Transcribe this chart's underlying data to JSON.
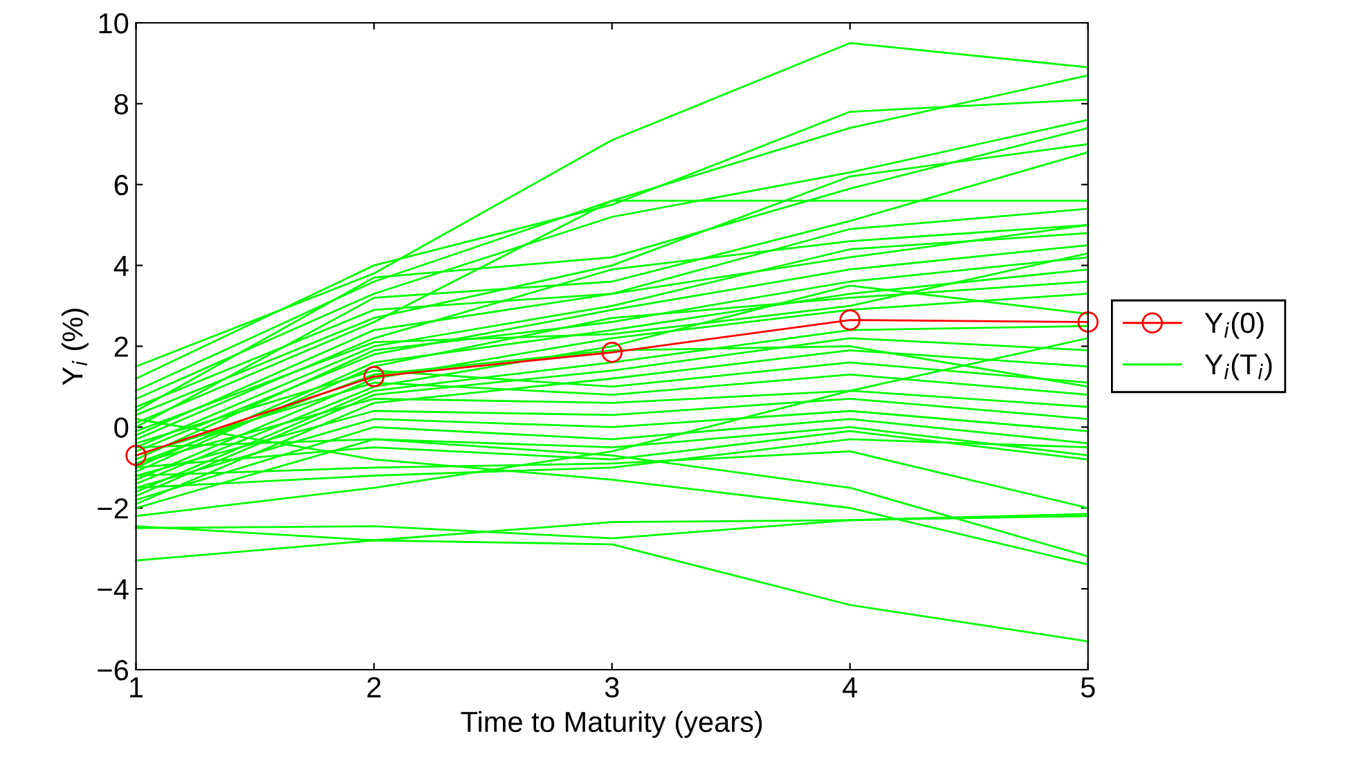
{
  "chart_data": {
    "type": "line",
    "xlabel": "Time to Maturity (years)",
    "ylabel": "Y$_{i}$ (%)",
    "x": [
      1,
      2,
      3,
      4,
      5
    ],
    "xlim": [
      1,
      5
    ],
    "ylim": [
      -6,
      10
    ],
    "xticks": [
      1,
      2,
      3,
      4,
      5
    ],
    "yticks": [
      -6,
      -4,
      -2,
      0,
      2,
      4,
      6,
      8,
      10
    ],
    "legend": "right",
    "grid": false,
    "line_style": "solid",
    "series": [
      {
        "name": "Y$_{i}$(T$_{i}$)",
        "color": "#00ff00",
        "marker": "none",
        "values": [
          1.5,
          3.8,
          7.1,
          9.5,
          8.9
        ]
      },
      {
        "color": "#00ff00",
        "marker": "none",
        "values": [
          1.2,
          4.0,
          5.5,
          7.8,
          8.1
        ]
      },
      {
        "color": "#00ff00",
        "marker": "none",
        "values": [
          0.9,
          3.6,
          5.6,
          7.4,
          8.7
        ]
      },
      {
        "color": "#00ff00",
        "marker": "none",
        "values": [
          0.7,
          3.3,
          5.2,
          6.3,
          7.6
        ]
      },
      {
        "color": "#00ff00",
        "marker": "none",
        "values": [
          0.4,
          3.7,
          4.2,
          5.9,
          7.4
        ]
      },
      {
        "color": "#00ff00",
        "marker": "none",
        "values": [
          0.3,
          2.7,
          4.0,
          6.2,
          7.0
        ]
      },
      {
        "color": "#00ff00",
        "marker": "none",
        "values": [
          0.1,
          2.6,
          5.6,
          5.6,
          5.6
        ]
      },
      {
        "color": "#00ff00",
        "marker": "none",
        "values": [
          0.0,
          3.2,
          3.6,
          5.1,
          6.8
        ]
      },
      {
        "color": "#00ff00",
        "marker": "none",
        "values": [
          -0.2,
          2.4,
          3.3,
          4.9,
          5.4
        ]
      },
      {
        "color": "#00ff00",
        "marker": "none",
        "values": [
          -0.3,
          2.2,
          3.9,
          4.6,
          5.0
        ]
      },
      {
        "color": "#00ff00",
        "marker": "none",
        "values": [
          -0.5,
          2.0,
          3.0,
          4.4,
          4.8
        ]
      },
      {
        "color": "#00ff00",
        "marker": "none",
        "values": [
          -0.6,
          1.8,
          2.9,
          3.9,
          4.5
        ]
      },
      {
        "color": "#00ff00",
        "marker": "none",
        "values": [
          -0.8,
          1.9,
          2.6,
          3.6,
          4.2
        ]
      },
      {
        "color": "#00ff00",
        "marker": "none",
        "values": [
          -1.0,
          1.6,
          2.4,
          3.3,
          3.9
        ]
      },
      {
        "color": "#00ff00",
        "marker": "none",
        "values": [
          -1.1,
          1.5,
          2.7,
          3.2,
          3.6
        ]
      },
      {
        "color": "#00ff00",
        "marker": "none",
        "values": [
          -1.3,
          1.2,
          2.2,
          2.9,
          3.3
        ]
      },
      {
        "color": "#00ff00",
        "marker": "none",
        "values": [
          -1.4,
          1.0,
          2.0,
          3.5,
          2.8
        ]
      },
      {
        "color": "#00ff00",
        "marker": "none",
        "values": [
          -1.6,
          0.9,
          1.6,
          2.4,
          2.5
        ]
      },
      {
        "color": "#00ff00",
        "marker": "none",
        "values": [
          -1.7,
          0.8,
          1.4,
          2.2,
          1.9
        ]
      },
      {
        "color": "#00ff00",
        "marker": "none",
        "values": [
          -1.9,
          0.6,
          1.2,
          1.9,
          1.5
        ]
      },
      {
        "color": "#00ff00",
        "marker": "none",
        "values": [
          -0.4,
          1.4,
          1.0,
          1.6,
          1.1
        ]
      },
      {
        "color": "#00ff00",
        "marker": "none",
        "values": [
          -0.7,
          1.1,
          0.8,
          1.3,
          0.8
        ]
      },
      {
        "color": "#00ff00",
        "marker": "none",
        "values": [
          -0.9,
          0.7,
          0.6,
          0.9,
          0.5
        ]
      },
      {
        "color": "#00ff00",
        "marker": "none",
        "values": [
          -1.2,
          0.4,
          0.3,
          0.7,
          0.2
        ]
      },
      {
        "color": "#00ff00",
        "marker": "none",
        "values": [
          -1.5,
          0.2,
          0.0,
          0.4,
          -0.1
        ]
      },
      {
        "color": "#00ff00",
        "marker": "none",
        "values": [
          -1.8,
          0.0,
          -0.3,
          0.2,
          -0.4
        ]
      },
      {
        "color": "#00ff00",
        "marker": "none",
        "values": [
          -2.0,
          -0.3,
          -0.5,
          0.0,
          -0.7
        ]
      },
      {
        "color": "#00ff00",
        "marker": "none",
        "values": [
          -1.0,
          -0.5,
          -0.8,
          -0.1,
          -0.8
        ]
      },
      {
        "color": "#00ff00",
        "marker": "none",
        "values": [
          -2.2,
          -1.5,
          -0.6,
          0.9,
          2.2
        ]
      },
      {
        "color": "#00ff00",
        "marker": "none",
        "values": [
          -1.5,
          -1.2,
          -1.0,
          -0.3,
          -0.5
        ]
      },
      {
        "color": "#00ff00",
        "marker": "none",
        "values": [
          0.2,
          -0.8,
          -1.3,
          -2.0,
          -3.4
        ]
      },
      {
        "color": "#00ff00",
        "marker": "none",
        "values": [
          -0.5,
          -0.3,
          -0.7,
          -1.5,
          -3.2
        ]
      },
      {
        "color": "#00ff00",
        "marker": "none",
        "values": [
          -1.2,
          -1.0,
          -0.9,
          -0.6,
          -2.0
        ]
      },
      {
        "color": "#00ff00",
        "marker": "none",
        "values": [
          -2.5,
          -2.45,
          -2.75,
          -2.3,
          -2.2
        ]
      },
      {
        "color": "#00ff00",
        "marker": "none",
        "values": [
          -2.45,
          -2.8,
          -2.35,
          -2.3,
          -2.15
        ]
      },
      {
        "color": "#00ff00",
        "marker": "none",
        "values": [
          -3.3,
          -2.8,
          -2.9,
          -4.4,
          -5.3
        ]
      },
      {
        "color": "#00ff00",
        "marker": "none",
        "values": [
          0.5,
          2.9,
          3.3,
          4.2,
          5.0
        ]
      },
      {
        "color": "#00ff00",
        "marker": "none",
        "values": [
          -0.1,
          2.1,
          2.3,
          3.0,
          4.3
        ]
      },
      {
        "color": "#00ff00",
        "marker": "none",
        "values": [
          -0.9,
          1.3,
          1.9,
          2.0,
          1.0
        ]
      },
      {
        "name": "Y$_{i}$(0)",
        "color": "#ff0000",
        "marker": "circle",
        "values": [
          -0.7,
          1.25,
          1.85,
          2.65,
          2.6
        ]
      }
    ]
  }
}
